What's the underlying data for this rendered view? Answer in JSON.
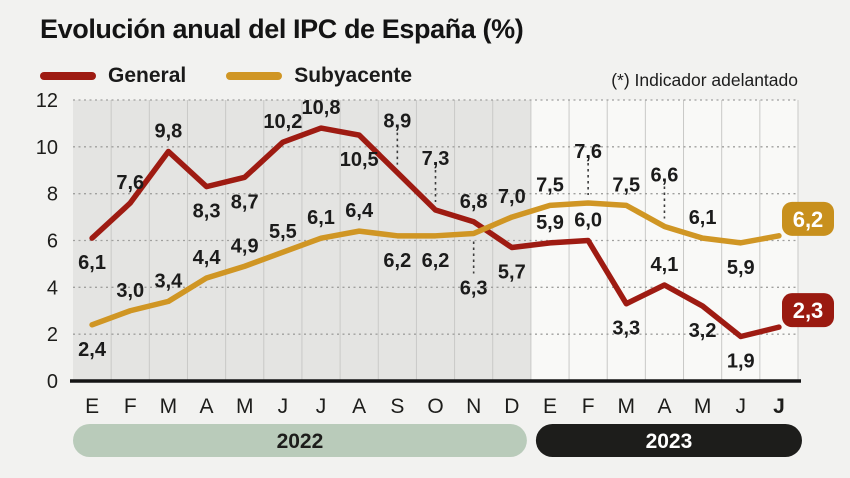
{
  "note": "(*) Indicador adelantado",
  "colors": {
    "page_bg": "#f2f2f0",
    "axis_line": "#151515",
    "vertical_gridline": "#c9c9c7",
    "horizontal_gridline": "#a0a09e",
    "dash_leader": "#3c3c3c",
    "data_label": "#1b1b1b"
  },
  "chart_data": {
    "type": "line",
    "title": "Evolución anual del IPC de España (%)",
    "xlabel": "",
    "ylabel": "",
    "ylim": [
      0,
      12
    ],
    "yticks": [
      0,
      2,
      4,
      6,
      8,
      10,
      12
    ],
    "grid": "horizontal dotted, vertical solid column separators",
    "legend_position": "top-left",
    "categories": [
      "E",
      "F",
      "M",
      "A",
      "M",
      "J",
      "J",
      "A",
      "S",
      "O",
      "N",
      "D",
      "E",
      "F",
      "M",
      "A",
      "M",
      "J",
      "J"
    ],
    "last_category_bold": true,
    "year_groups": [
      {
        "label": "2022",
        "from": 0,
        "to": 11,
        "pill_bg": "#b9cbba",
        "pill_fg": "#1d1d1b",
        "plot_bg": "#e4e4e2"
      },
      {
        "label": "2023",
        "from": 12,
        "to": 18,
        "pill_bg": "#1d1d1b",
        "pill_fg": "#ffffff",
        "plot_bg": "#f9f9f7"
      }
    ],
    "series": [
      {
        "name": "General",
        "color": "#9e1b12",
        "badge_bg": "#9a1a10",
        "values": [
          6.1,
          7.6,
          9.8,
          8.3,
          8.7,
          10.2,
          10.8,
          10.5,
          8.9,
          7.3,
          6.8,
          5.7,
          5.9,
          6.0,
          3.3,
          4.1,
          3.2,
          1.9,
          2.3
        ],
        "labels": [
          "6,1",
          "7,6",
          "9,8",
          "8,3",
          "8,7",
          "10,2",
          "10,8",
          "10,5",
          "8,9",
          "7,3",
          "6,8",
          "5,7",
          "5,9",
          "6,0",
          "3,3",
          "4,1",
          "3,2",
          "1,9",
          "2,3"
        ],
        "label_pos": [
          "below",
          "above",
          "above",
          "below",
          "below",
          "above",
          "above",
          "below",
          "above-dash",
          "above-dash",
          "above",
          "below",
          "above",
          "above",
          "below",
          "above",
          "below",
          "below",
          "badge"
        ]
      },
      {
        "name": "Subyacente",
        "color": "#d09624",
        "badge_bg": "#c8901d",
        "values": [
          2.4,
          3.0,
          3.4,
          4.4,
          4.9,
          5.5,
          6.1,
          6.4,
          6.2,
          6.2,
          6.3,
          7.0,
          7.5,
          7.6,
          7.5,
          6.6,
          6.1,
          5.9,
          6.2
        ],
        "labels": [
          "2,4",
          "3,0",
          "3,4",
          "4,4",
          "4,9",
          "5,5",
          "6,1",
          "6,4",
          "6,2",
          "6,2",
          "6,3",
          "7,0",
          "7,5",
          "7,6",
          "7,5",
          "6,6",
          "6,1",
          "5,9",
          "6,2"
        ],
        "label_pos": [
          "below",
          "above",
          "above",
          "above",
          "above",
          "above",
          "above",
          "above",
          "below",
          "below",
          "below-dash",
          "above",
          "above",
          "above-dash",
          "above",
          "above-dash",
          "above",
          "below",
          "badge"
        ]
      }
    ]
  }
}
